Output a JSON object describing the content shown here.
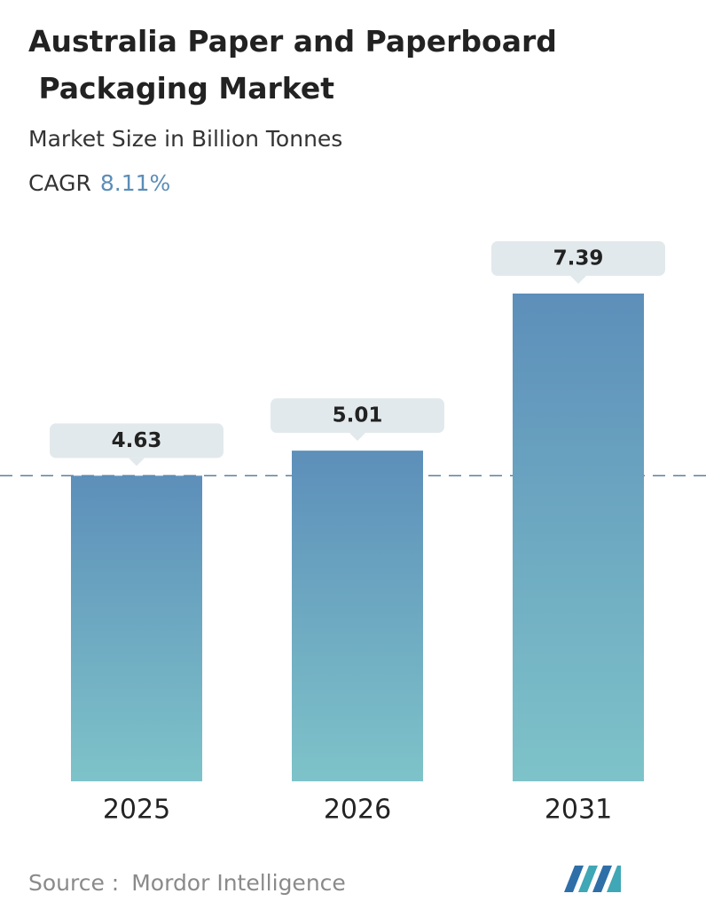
{
  "chart_data": {
    "type": "bar",
    "title": "Australia Paper and Paperboard Packaging Market",
    "subtitle": "Market Size in Billion Tonnes",
    "cagr_label": "CAGR",
    "cagr_value": "8.11%",
    "categories": [
      "2025",
      "2026",
      "2031"
    ],
    "values": [
      4.63,
      5.01,
      7.39
    ],
    "source_label": "Source :",
    "source": "Mordor Intelligence"
  }
}
